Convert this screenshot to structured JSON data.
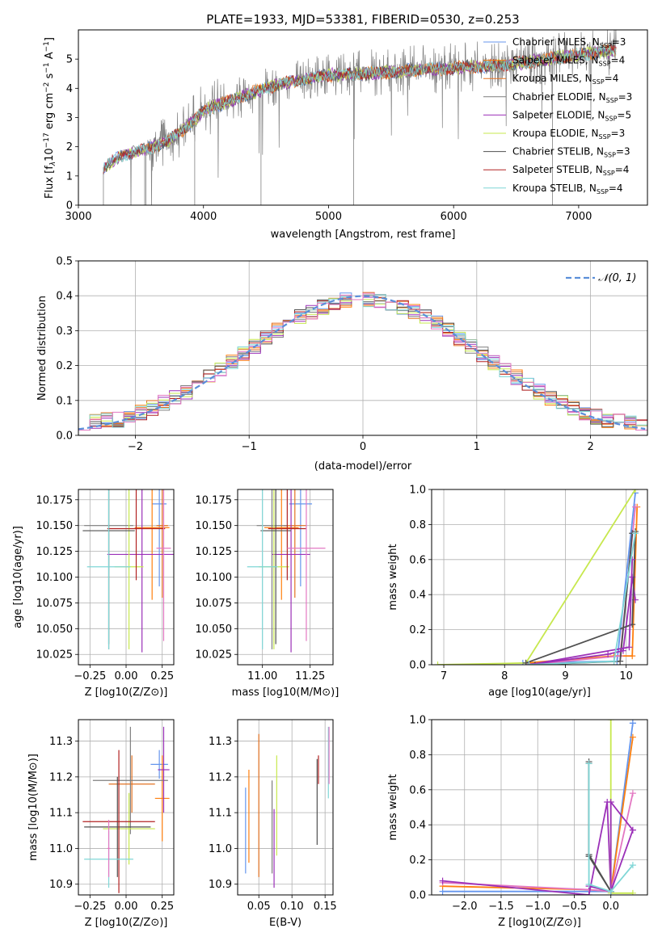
{
  "figure": {
    "title": "PLATE=1933, MJD=53381, FIBERID=0530, z=0.253"
  },
  "colors": {
    "series": [
      "#6495ed",
      "#ff7f0e",
      "#e37222",
      "#7f7f7f",
      "#9b30b8",
      "#c7e84e",
      "#505050",
      "#b22222",
      "#7fd6d6"
    ],
    "normal_fit": "#5b8fd9",
    "pink": "#e377c2",
    "grid": "#b0b0b0"
  },
  "chart_data": [
    {
      "id": "spectrum",
      "type": "line",
      "title": "PLATE=1933, MJD=53381, FIBERID=0530, z=0.253",
      "xlabel": "wavelength [Angstrom, rest frame]",
      "ylabel": "Flux [f_λ 10^-17 erg cm^-2 s^-1 A^-1]",
      "xlim": [
        3000,
        7550
      ],
      "ylim": [
        0,
        6
      ],
      "xticks": [
        "3000",
        "4000",
        "5000",
        "6000",
        "7000"
      ],
      "yticks": [
        "0",
        "1",
        "2",
        "3",
        "4",
        "5"
      ],
      "grid": false,
      "legend_position": "top-right",
      "continuum_x": [
        3200,
        3350,
        3550,
        3700,
        3900,
        4000,
        4300,
        4600,
        5000,
        5300,
        5600,
        6000,
        6300,
        6600,
        7000,
        7300
      ],
      "continuum_y": [
        1.3,
        1.7,
        1.95,
        2.15,
        2.8,
        3.25,
        3.7,
        4.15,
        4.45,
        4.5,
        4.6,
        4.7,
        4.75,
        4.9,
        5.15,
        5.3
      ],
      "series": [
        {
          "label": "Chabrier MILES, N",
          "sub": "SSP",
          "suffix": "=3"
        },
        {
          "label": "Salpeter MILES, N",
          "sub": "SSP",
          "suffix": "=4"
        },
        {
          "label": "Kroupa MILES, N",
          "sub": "SSP",
          "suffix": "=4"
        },
        {
          "label": "Chabrier ELODIE, N",
          "sub": "SSP",
          "suffix": "=3"
        },
        {
          "label": "Salpeter ELODIE, N",
          "sub": "SSP",
          "suffix": "=5"
        },
        {
          "label": "Kroupa ELODIE, N",
          "sub": "SSP",
          "suffix": "=3"
        },
        {
          "label": "Chabrier STELIB, N",
          "sub": "SSP",
          "suffix": "=3"
        },
        {
          "label": "Salpeter STELIB, N",
          "sub": "SSP",
          "suffix": "=4"
        },
        {
          "label": "Kroupa STELIB, N",
          "sub": "SSP",
          "suffix": "=4"
        }
      ]
    },
    {
      "id": "residuals",
      "type": "histogram",
      "xlabel": "(data-model)/error",
      "ylabel": "Normed distribution",
      "xlim": [
        -2.5,
        2.5
      ],
      "ylim": [
        0,
        0.5
      ],
      "xticks": [
        "−2",
        "−1",
        "0",
        "1",
        "2"
      ],
      "yticks": [
        "0.0",
        "0.1",
        "0.2",
        "0.3",
        "0.4",
        "0.5"
      ],
      "grid": true,
      "legend_position": "top-right",
      "fit_label": "𝒩(0, 1)",
      "bin_width": 0.1
    },
    {
      "id": "age_vs_Z",
      "type": "errorbar",
      "xlabel": "Z [log10(Z/Z⊙)]",
      "ylabel": "age  [log10(age/yr)]",
      "xlim": [
        -0.33,
        0.33
      ],
      "ylim": [
        10.015,
        10.185
      ],
      "xticks": [
        "−0.25",
        "0.00",
        "0.25"
      ],
      "yticks": [
        "10.025",
        "10.050",
        "10.075",
        "10.100",
        "10.125",
        "10.150",
        "10.175"
      ],
      "grid": true,
      "points": [
        {
          "x": 0.23,
          "xerr": 0.05,
          "y": 10.171,
          "yerr": 0.08
        },
        {
          "x": 0.18,
          "xerr": 0.12,
          "y": 10.148,
          "yerr": 0.07
        },
        {
          "x": 0.25,
          "xerr": 0.04,
          "y": 10.15,
          "yerr": 0.07
        },
        {
          "x": -0.12,
          "xerr": 0.17,
          "y": 10.15,
          "yerr": 0.12
        },
        {
          "x": 0.11,
          "xerr": 0.24,
          "y": 10.122,
          "yerr": 0.095
        },
        {
          "x": 0.02,
          "xerr": 0.1,
          "y": 10.11,
          "yerr": 0.08
        },
        {
          "x": -0.12,
          "xerr": 0.18,
          "y": 10.145,
          "yerr": 0.11
        },
        {
          "x": 0.07,
          "xerr": 0.2,
          "y": 10.147,
          "yerr": 0.05
        },
        {
          "x": -0.12,
          "xerr": 0.15,
          "y": 10.11,
          "yerr": 0.08
        },
        {
          "x": 0.26,
          "xerr": 0.05,
          "y": 10.128,
          "yerr": 0.09
        }
      ]
    },
    {
      "id": "age_vs_mass",
      "type": "errorbar",
      "xlabel": "mass [log10(M/M⊙)]",
      "ylabel": "",
      "xlim": [
        10.87,
        11.37
      ],
      "ylim": [
        10.015,
        10.185
      ],
      "xticks": [
        "11.00",
        "11.25"
      ],
      "yticks": [
        "10.025",
        "10.050",
        "10.075",
        "10.100",
        "10.125",
        "10.150",
        "10.175"
      ],
      "grid": true,
      "points": [
        {
          "x": 11.2,
          "xerr": 0.06,
          "y": 10.171,
          "yerr": 0.08
        },
        {
          "x": 11.1,
          "xerr": 0.09,
          "y": 10.148,
          "yerr": 0.07
        },
        {
          "x": 11.17,
          "xerr": 0.06,
          "y": 10.15,
          "yerr": 0.07
        },
        {
          "x": 11.05,
          "xerr": 0.08,
          "y": 10.15,
          "yerr": 0.12
        },
        {
          "x": 11.15,
          "xerr": 0.1,
          "y": 10.122,
          "yerr": 0.095
        },
        {
          "x": 11.06,
          "xerr": 0.08,
          "y": 10.11,
          "yerr": 0.08
        },
        {
          "x": 11.07,
          "xerr": 0.08,
          "y": 10.145,
          "yerr": 0.11
        },
        {
          "x": 11.13,
          "xerr": 0.1,
          "y": 10.147,
          "yerr": 0.05
        },
        {
          "x": 11.0,
          "xerr": 0.08,
          "y": 10.11,
          "yerr": 0.08
        },
        {
          "x": 11.23,
          "xerr": 0.1,
          "y": 10.128,
          "yerr": 0.09
        }
      ]
    },
    {
      "id": "weight_vs_age",
      "type": "line",
      "xlabel": "age  [log10(age/yr)]",
      "ylabel": "mass weight",
      "xlim": [
        6.8,
        10.35
      ],
      "ylim": [
        0,
        1
      ],
      "xticks": [
        "7",
        "8",
        "9",
        "10"
      ],
      "yticks": [
        "0.0",
        "0.2",
        "0.4",
        "0.6",
        "0.8",
        "1.0"
      ],
      "grid": true,
      "series": [
        {
          "x": [
            8.3,
            9.85,
            10.15
          ],
          "y": [
            0.01,
            0.02,
            0.98
          ]
        },
        {
          "x": [
            8.35,
            9.8,
            10.1,
            10.18
          ],
          "y": [
            0.01,
            0.05,
            0.05,
            0.9
          ]
        },
        {
          "x": [
            8.4,
            9.9,
            10.15
          ],
          "y": [
            0.0,
            0.05,
            0.9
          ]
        },
        {
          "x": [
            8.5,
            9.9,
            10.1
          ],
          "y": [
            0.0,
            0.02,
            0.75
          ]
        },
        {
          "x": [
            8.4,
            9.7,
            9.95,
            10.1,
            10.15
          ],
          "y": [
            0.0,
            0.06,
            0.08,
            0.5,
            0.37
          ]
        },
        {
          "x": [
            6.9,
            8.35,
            10.15
          ],
          "y": [
            0.0,
            0.01,
            1.0
          ]
        },
        {
          "x": [
            8.35,
            10.1,
            10.15
          ],
          "y": [
            0.01,
            0.23,
            0.76
          ]
        },
        {
          "x": [
            8.4,
            10.05,
            10.1
          ],
          "y": [
            0.0,
            0.1,
            0.6
          ]
        },
        {
          "x": [
            8.4,
            9.8,
            10.15
          ],
          "y": [
            0.0,
            0.02,
            0.75
          ]
        }
      ]
    },
    {
      "id": "mass_vs_Z",
      "type": "errorbar",
      "xlabel": "Z [log10(Z/Z⊙)]",
      "ylabel": "mass [log10(M/M⊙)]",
      "xlim": [
        -0.33,
        0.33
      ],
      "ylim": [
        10.87,
        11.36
      ],
      "xticks": [
        "−0.25",
        "0.00",
        "0.25"
      ],
      "yticks": [
        "10.9",
        "11.0",
        "11.1",
        "11.2",
        "11.3"
      ],
      "grid": true,
      "points": [
        {
          "x": 0.23,
          "xerr": 0.06,
          "y": 11.235,
          "yerr": 0.04
        },
        {
          "x": 0.25,
          "xerr": 0.05,
          "y": 11.14,
          "yerr": 0.12
        },
        {
          "x": 0.04,
          "xerr": 0.16,
          "y": 11.18,
          "yerr": 0.08
        },
        {
          "x": 0.03,
          "xerr": 0.26,
          "y": 11.19,
          "yerr": 0.15
        },
        {
          "x": 0.26,
          "xerr": 0.04,
          "y": 11.22,
          "yerr": 0.12
        },
        {
          "x": 0.02,
          "xerr": 0.18,
          "y": 11.055,
          "yerr": 0.1
        },
        {
          "x": -0.06,
          "xerr": 0.23,
          "y": 11.06,
          "yerr": 0.14
        },
        {
          "x": -0.05,
          "xerr": 0.25,
          "y": 11.075,
          "yerr": 0.2
        },
        {
          "x": -0.12,
          "xerr": 0.17,
          "y": 10.97,
          "yerr": 0.08
        },
        {
          "x": -0.12,
          "xerr": 0.01,
          "y": 11.0,
          "yerr": 0.08
        }
      ]
    },
    {
      "id": "mass_vs_EBV",
      "type": "errorbar",
      "xlabel": "E(B-V)",
      "ylabel": "",
      "xlim": [
        0.018,
        0.162
      ],
      "ylim": [
        10.87,
        11.36
      ],
      "xticks": [
        "0.05",
        "0.10",
        "0.15"
      ],
      "yticks": [
        "10.9",
        "11.0",
        "11.1",
        "11.2",
        "11.3"
      ],
      "grid": true,
      "points": [
        {
          "x": 0.03,
          "y": 11.05,
          "yerr": 0.12
        },
        {
          "x": 0.035,
          "y": 11.09,
          "yerr": 0.13
        },
        {
          "x": 0.05,
          "y": 11.12,
          "yerr": 0.2
        },
        {
          "x": 0.07,
          "y": 11.06,
          "yerr": 0.13
        },
        {
          "x": 0.073,
          "y": 11.0,
          "yerr": 0.11
        },
        {
          "x": 0.077,
          "y": 11.12,
          "yerr": 0.14
        },
        {
          "x": 0.138,
          "y": 11.13,
          "yerr": 0.12
        },
        {
          "x": 0.14,
          "y": 11.22,
          "yerr": 0.04
        },
        {
          "x": 0.155,
          "y": 11.24,
          "yerr": 0.1
        },
        {
          "x": 0.156,
          "y": 11.26,
          "yerr": 0.08
        }
      ]
    },
    {
      "id": "weight_vs_Z",
      "type": "line",
      "xlabel": "Z [log10(Z/Z⊙)]",
      "ylabel": "mass weight",
      "xlim": [
        -2.45,
        0.5
      ],
      "ylim": [
        0,
        1
      ],
      "xticks": [
        "−2.0",
        "−1.5",
        "−1.0",
        "−0.5",
        "0.0"
      ],
      "yticks": [
        "0.0",
        "0.2",
        "0.4",
        "0.6",
        "0.8",
        "1.0"
      ],
      "grid": true,
      "series": [
        {
          "x": [
            -2.3,
            -0.3,
            0.0,
            0.3,
            0.3
          ],
          "y": [
            0.02,
            0.02,
            0.02,
            0.98,
            0.98
          ]
        },
        {
          "x": [
            -2.3,
            -0.3,
            0.0,
            0.3
          ],
          "y": [
            0.05,
            0.03,
            0.02,
            0.9
          ]
        },
        {
          "x": [
            -2.3,
            -0.3,
            0.0,
            0.3
          ],
          "y": [
            0.07,
            0.03,
            0.02,
            0.58
          ]
        },
        {
          "x": [
            -0.3,
            -0.3,
            0.0
          ],
          "y": [
            0.75,
            0.22,
            0.02
          ]
        },
        {
          "x": [
            -2.3,
            -0.3,
            -0.05,
            0.0,
            0.3
          ],
          "y": [
            0.08,
            0.0,
            0.53,
            0.02,
            0.37
          ]
        },
        {
          "x": [
            0.0,
            0.0,
            0.3
          ],
          "y": [
            1.0,
            0.01,
            0.01
          ]
        },
        {
          "x": [
            -0.3,
            -0.3,
            0.0
          ],
          "y": [
            0.76,
            0.23,
            0.02
          ]
        },
        {
          "x": [
            -0.3,
            0.0,
            0.0,
            0.3
          ],
          "y": [
            0.05,
            0.02,
            0.53,
            0.37
          ]
        },
        {
          "x": [
            -0.3,
            -0.3,
            0.0,
            0.3
          ],
          "y": [
            0.75,
            0.06,
            0.02,
            0.17
          ]
        }
      ]
    }
  ]
}
